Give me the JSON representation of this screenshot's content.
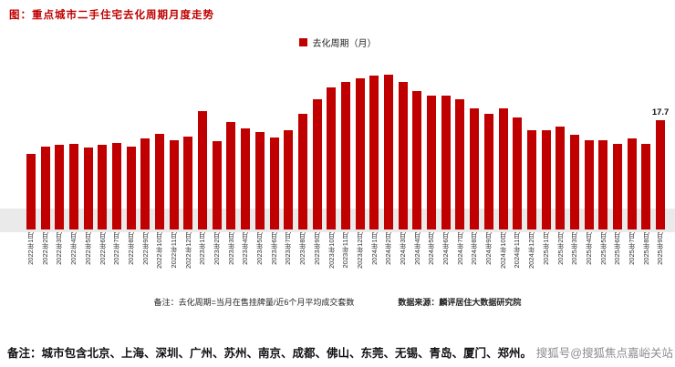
{
  "page": {
    "title": "图：重点城市二手住宅去化周期月度走势",
    "legend_label": "去化周期（月）",
    "footnote_left": "备注：去化周期=当月在售挂牌量/近6个月平均成交套数",
    "footnote_source": "数据来源：麟评居住大数据研究院",
    "bottom_note": "备注：城市包含北京、上海、深圳、广州、苏州、南京、成都、佛山、东莞、无锡、青岛、厦门、郑州。",
    "watermark": "搜狐号@搜狐焦点嘉峪关站",
    "colors": {
      "title": "#c00000",
      "bar": "#c00000",
      "band": "#eaeaea",
      "watermark": "#8c8c8c"
    }
  },
  "chart_data": {
    "type": "bar",
    "title": "重点城市二手住宅去化周期月度走势",
    "legend": [
      "去化周期（月）"
    ],
    "ylabel": "去化周期（月）",
    "ylim": [
      9,
      22
    ],
    "grid": false,
    "legend_position": "top-center",
    "bar_color": "#c00000",
    "categories": [
      "2022年1月",
      "2022年2月",
      "2022年3月",
      "2022年4月",
      "2022年5月",
      "2022年6月",
      "2022年7月",
      "2022年8月",
      "2022年9月",
      "2022年10月",
      "2022年11月",
      "2022年12月",
      "2023年1月",
      "2023年2月",
      "2023年3月",
      "2023年4月",
      "2023年5月",
      "2023年6月",
      "2023年7月",
      "2023年8月",
      "2023年9月",
      "2023年10月",
      "2023年11月",
      "2023年12月",
      "2024年1月",
      "2024年2月",
      "2024年3月",
      "2024年4月",
      "2024年5月",
      "2024年6月",
      "2024年7月",
      "2024年8月",
      "2024年9月",
      "2024年10月",
      "2024年11月",
      "2024年12月",
      "2025年1月",
      "2025年2月",
      "2025年3月",
      "2025年4月",
      "2025年5月",
      "2025年6月",
      "2025年7月",
      "2025年8月",
      "2025年9月"
    ],
    "values": [
      15.0,
      15.6,
      15.7,
      15.8,
      15.5,
      15.7,
      15.9,
      15.6,
      16.2,
      16.6,
      16.1,
      16.4,
      18.4,
      16.0,
      17.5,
      17.0,
      16.7,
      16.3,
      16.9,
      18.2,
      19.3,
      20.3,
      20.7,
      21.0,
      21.2,
      21.3,
      20.7,
      20.0,
      19.6,
      19.6,
      19.3,
      18.6,
      18.2,
      18.6,
      17.9,
      16.9,
      16.9,
      17.2,
      16.5,
      16.1,
      16.1,
      15.8,
      16.2,
      15.8,
      17.7
    ],
    "highlight_label": {
      "index": 44,
      "text": "17.7"
    }
  }
}
